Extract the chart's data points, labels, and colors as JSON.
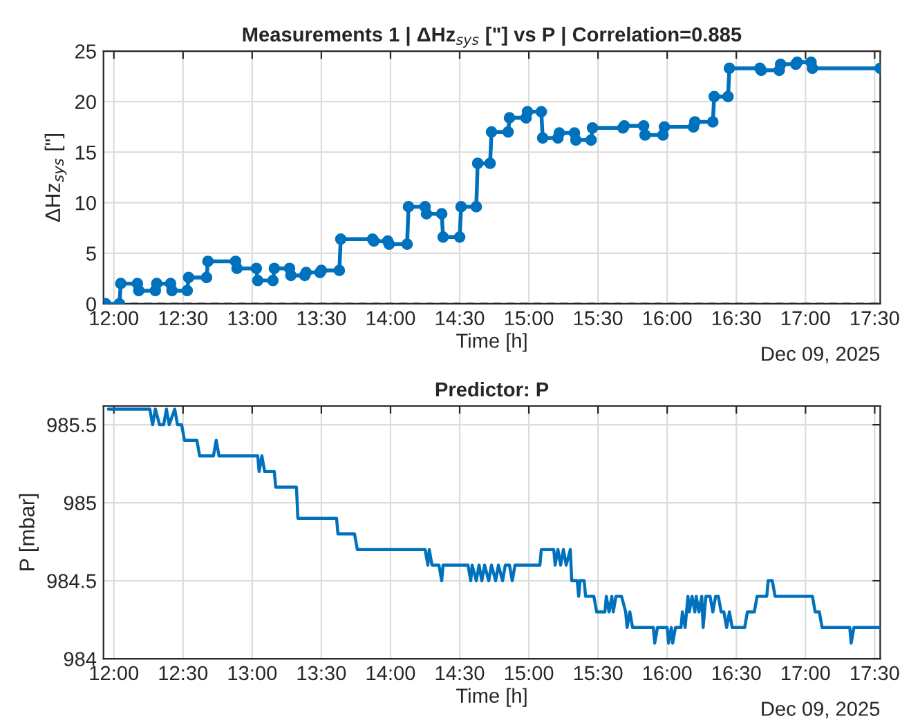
{
  "chart_data": [
    {
      "type": "line",
      "title": "Measurements 1 | ΔHz$_{sys}$ [\"] vs P | Correlation=0.885",
      "xlabel": "Time [h]",
      "ylabel": "ΔHz$_{sys}$ [\"]",
      "annotations": [
        "Dec 09, 2025"
      ],
      "xlim": [
        11.925,
        17.54
      ],
      "ylim": [
        0,
        25
      ],
      "xticks": [
        {
          "value": 12,
          "label": "12:00"
        },
        {
          "value": 12.5,
          "label": "12:30"
        },
        {
          "value": 13,
          "label": "13:00"
        },
        {
          "value": 13.5,
          "label": "13:30"
        },
        {
          "value": 14,
          "label": "14:00"
        },
        {
          "value": 14.5,
          "label": "14:30"
        },
        {
          "value": 15,
          "label": "15:00"
        },
        {
          "value": 15.5,
          "label": "15:30"
        },
        {
          "value": 16,
          "label": "16:00"
        },
        {
          "value": 16.5,
          "label": "16:30"
        },
        {
          "value": 17,
          "label": "17:00"
        },
        {
          "value": 17.5,
          "label": "17:30"
        }
      ],
      "yticks": [
        0,
        5,
        10,
        15,
        20,
        25
      ],
      "grid": true,
      "marker": "circle",
      "line_style": "solid",
      "ref_lines": [
        {
          "axis": "y",
          "value": 0,
          "color": "#262626",
          "line_style": "dashed"
        }
      ],
      "series": [
        {
          "color": "#0072bd",
          "x": [
            11.94,
            12.04,
            12.05,
            12.17,
            12.18,
            12.3,
            12.31,
            12.41,
            12.42,
            12.53,
            12.54,
            12.67,
            12.68,
            12.88,
            12.89,
            13.03,
            13.04,
            13.15,
            13.16,
            13.27,
            13.28,
            13.38,
            13.39,
            13.49,
            13.5,
            13.63,
            13.64,
            13.87,
            13.88,
            13.98,
            13.99,
            14.12,
            14.13,
            14.25,
            14.26,
            14.37,
            14.38,
            14.5,
            14.51,
            14.62,
            14.63,
            14.72,
            14.73,
            14.85,
            14.86,
            14.98,
            14.99,
            15.09,
            15.1,
            15.21,
            15.22,
            15.33,
            15.34,
            15.45,
            15.46,
            15.68,
            15.69,
            15.83,
            15.84,
            15.97,
            15.98,
            16.19,
            16.2,
            16.33,
            16.34,
            16.44,
            16.45,
            16.67,
            16.68,
            16.81,
            16.82,
            16.93,
            16.94,
            17.04,
            17.05,
            17.54
          ],
          "values": [
            0,
            0,
            2.0,
            2.0,
            1.3,
            1.3,
            2.0,
            2.0,
            1.3,
            1.3,
            2.6,
            2.6,
            4.2,
            4.2,
            3.5,
            3.5,
            2.3,
            2.3,
            3.5,
            3.5,
            2.8,
            2.8,
            3.1,
            3.1,
            3.3,
            3.3,
            6.4,
            6.4,
            6.2,
            6.2,
            5.9,
            5.9,
            9.6,
            9.6,
            8.9,
            8.9,
            6.6,
            6.6,
            9.6,
            9.6,
            13.9,
            13.9,
            17.0,
            17.0,
            18.4,
            18.4,
            19.0,
            19.0,
            16.4,
            16.4,
            16.9,
            16.9,
            16.2,
            16.2,
            17.4,
            17.4,
            17.6,
            17.6,
            16.7,
            16.7,
            17.5,
            17.5,
            18.0,
            18.0,
            20.5,
            20.5,
            23.3,
            23.3,
            23.1,
            23.1,
            23.7,
            23.7,
            23.9,
            23.9,
            23.3,
            23.3
          ]
        }
      ]
    },
    {
      "type": "line",
      "title": "Predictor: P",
      "xlabel": "Time [h]",
      "ylabel": "P [mbar]",
      "annotations": [
        "Dec 09, 2025"
      ],
      "xlim": [
        11.925,
        17.54
      ],
      "ylim": [
        984,
        985.62
      ],
      "xticks": [
        {
          "value": 12,
          "label": "12:00"
        },
        {
          "value": 12.5,
          "label": "12:30"
        },
        {
          "value": 13,
          "label": "13:00"
        },
        {
          "value": 13.5,
          "label": "13:30"
        },
        {
          "value": 14,
          "label": "14:00"
        },
        {
          "value": 14.5,
          "label": "14:30"
        },
        {
          "value": 15,
          "label": "15:00"
        },
        {
          "value": 15.5,
          "label": "15:30"
        },
        {
          "value": 16,
          "label": "16:00"
        },
        {
          "value": 16.5,
          "label": "16:30"
        },
        {
          "value": 17,
          "label": "17:00"
        },
        {
          "value": 17.5,
          "label": "17:30"
        }
      ],
      "yticks": [
        984,
        984.5,
        985,
        985.5
      ],
      "grid": true,
      "line_style": "solid",
      "series": [
        {
          "color": "#0072bd",
          "x": [
            11.96,
            12.26,
            12.28,
            12.3,
            12.33,
            12.36,
            12.38,
            12.4,
            12.44,
            12.46,
            12.49,
            12.51,
            12.6,
            12.62,
            12.72,
            12.74,
            12.76,
            13.04,
            13.05,
            13.07,
            13.09,
            13.16,
            13.17,
            13.32,
            13.33,
            13.61,
            13.62,
            13.74,
            13.76,
            14.25,
            14.27,
            14.28,
            14.3,
            14.35,
            14.37,
            14.38,
            14.56,
            14.58,
            14.59,
            14.62,
            14.64,
            14.66,
            14.68,
            14.71,
            14.73,
            14.76,
            14.78,
            14.81,
            14.83,
            14.86,
            14.88,
            14.9,
            15.08,
            15.09,
            15.18,
            15.19,
            15.21,
            15.23,
            15.25,
            15.27,
            15.3,
            15.31,
            15.35,
            15.36,
            15.37,
            15.4,
            15.41,
            15.47,
            15.49,
            15.55,
            15.56,
            15.58,
            15.6,
            15.61,
            15.63,
            15.67,
            15.7,
            15.71,
            15.73,
            15.75,
            15.9,
            15.91,
            15.93,
            16.0,
            16.01,
            16.03,
            16.04,
            16.06,
            16.1,
            16.11,
            16.13,
            16.15,
            16.16,
            16.18,
            16.2,
            16.21,
            16.23,
            16.25,
            16.26,
            16.28,
            16.31,
            16.33,
            16.35,
            16.37,
            16.39,
            16.41,
            16.43,
            16.45,
            16.47,
            16.5,
            16.56,
            16.58,
            16.63,
            16.65,
            16.72,
            16.73,
            16.76,
            16.78,
            17.05,
            17.07,
            17.1,
            17.12,
            17.32,
            17.33,
            17.35,
            17.54
          ],
          "values": [
            985.6,
            985.6,
            985.5,
            985.6,
            985.5,
            985.5,
            985.6,
            985.5,
            985.6,
            985.5,
            985.5,
            985.4,
            985.4,
            985.3,
            985.3,
            985.4,
            985.3,
            985.3,
            985.2,
            985.3,
            985.2,
            985.2,
            985.1,
            985.1,
            984.9,
            984.9,
            984.8,
            984.8,
            984.7,
            984.7,
            984.6,
            984.7,
            984.6,
            984.6,
            984.5,
            984.6,
            984.6,
            984.5,
            984.6,
            984.5,
            984.6,
            984.5,
            984.6,
            984.5,
            984.6,
            984.5,
            984.6,
            984.5,
            984.6,
            984.6,
            984.5,
            984.6,
            984.6,
            984.7,
            984.7,
            984.6,
            984.7,
            984.6,
            984.7,
            984.6,
            984.7,
            984.5,
            984.5,
            984.4,
            984.5,
            984.5,
            984.4,
            984.4,
            984.3,
            984.3,
            984.4,
            984.3,
            984.4,
            984.3,
            984.4,
            984.4,
            984.3,
            984.2,
            984.3,
            984.2,
            984.2,
            984.1,
            984.2,
            984.2,
            984.1,
            984.2,
            984.1,
            984.2,
            984.2,
            984.3,
            984.2,
            984.4,
            984.3,
            984.4,
            984.3,
            984.4,
            984.3,
            984.4,
            984.2,
            984.4,
            984.4,
            984.3,
            984.4,
            984.4,
            984.3,
            984.3,
            984.2,
            984.3,
            984.2,
            984.2,
            984.2,
            984.3,
            984.3,
            984.4,
            984.4,
            984.5,
            984.5,
            984.4,
            984.4,
            984.3,
            984.3,
            984.2,
            984.2,
            984.1,
            984.2,
            984.2
          ]
        }
      ]
    }
  ]
}
